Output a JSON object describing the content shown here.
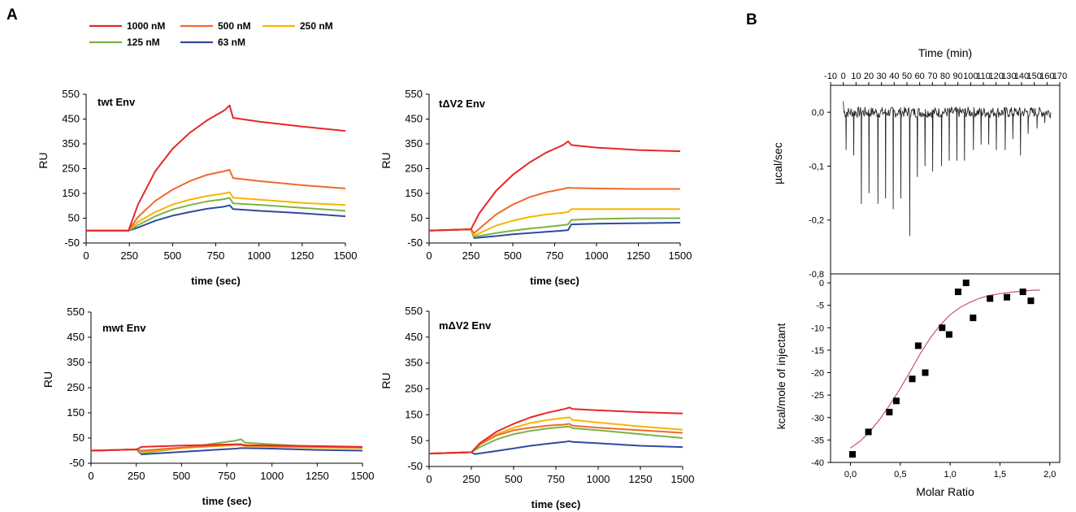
{
  "panel_labels": {
    "a": "A",
    "b": "B"
  },
  "legend": [
    {
      "name": "1000 nM",
      "color": "#e8262a"
    },
    {
      "name": "500 nM",
      "color": "#ef6a2c"
    },
    {
      "name": "250 nM",
      "color": "#f7b500"
    },
    {
      "name": "125 nM",
      "color": "#7cb342"
    },
    {
      "name": "63 nM",
      "color": "#2f4aa0"
    }
  ],
  "chart_data": [
    {
      "id": "twt",
      "type": "line",
      "title": "twt Env",
      "xlabel": "time (sec)",
      "ylabel": "RU",
      "xlim": [
        0,
        1500
      ],
      "ylim": [
        -50,
        550
      ],
      "xticks": [
        0,
        250,
        500,
        750,
        1000,
        1250,
        1500
      ],
      "yticks": [
        -50,
        50,
        150,
        250,
        350,
        450,
        550
      ],
      "series": [
        {
          "name": "1000 nM",
          "x": [
            0,
            245,
            300,
            400,
            500,
            600,
            700,
            800,
            830,
            850,
            1000,
            1250,
            1500
          ],
          "y": [
            0,
            0,
            105,
            240,
            330,
            395,
            445,
            485,
            505,
            455,
            440,
            420,
            402
          ]
        },
        {
          "name": "500 nM",
          "x": [
            0,
            245,
            300,
            400,
            500,
            600,
            700,
            800,
            830,
            850,
            1000,
            1250,
            1500
          ],
          "y": [
            0,
            0,
            55,
            120,
            165,
            200,
            225,
            240,
            245,
            212,
            200,
            183,
            170
          ]
        },
        {
          "name": "250 nM",
          "x": [
            0,
            245,
            300,
            400,
            500,
            600,
            700,
            800,
            830,
            850,
            1000,
            1250,
            1500
          ],
          "y": [
            0,
            0,
            35,
            75,
            105,
            125,
            140,
            150,
            155,
            133,
            125,
            112,
            103
          ]
        },
        {
          "name": "125 nM",
          "x": [
            0,
            245,
            300,
            400,
            500,
            600,
            700,
            800,
            830,
            850,
            1000,
            1250,
            1500
          ],
          "y": [
            0,
            0,
            22,
            58,
            85,
            103,
            118,
            127,
            132,
            110,
            104,
            92,
            80
          ]
        },
        {
          "name": "63 nM",
          "x": [
            0,
            245,
            300,
            400,
            500,
            600,
            700,
            800,
            830,
            850,
            1000,
            1250,
            1500
          ],
          "y": [
            0,
            0,
            12,
            40,
            60,
            75,
            88,
            97,
            102,
            87,
            80,
            70,
            58
          ]
        }
      ]
    },
    {
      "id": "tdv2",
      "type": "line",
      "title": "tΔV2 Env",
      "xlabel": "time (sec)",
      "ylabel": "RU",
      "xlim": [
        0,
        1500
      ],
      "ylim": [
        -50,
        550
      ],
      "xticks": [
        0,
        250,
        500,
        750,
        1000,
        1250,
        1500
      ],
      "yticks": [
        -50,
        50,
        150,
        250,
        350,
        450,
        550
      ],
      "series": [
        {
          "name": "1000 nM",
          "x": [
            0,
            230,
            250,
            300,
            400,
            500,
            600,
            700,
            800,
            830,
            850,
            1000,
            1250,
            1500
          ],
          "y": [
            0,
            5,
            5,
            70,
            160,
            225,
            275,
            315,
            345,
            360,
            345,
            335,
            325,
            320
          ]
        },
        {
          "name": "500 nM",
          "x": [
            0,
            230,
            250,
            270,
            400,
            500,
            600,
            700,
            800,
            830,
            850,
            1000,
            1250,
            1500
          ],
          "y": [
            0,
            5,
            5,
            -10,
            65,
            105,
            135,
            155,
            168,
            173,
            172,
            170,
            168,
            168
          ]
        },
        {
          "name": "250 nM",
          "x": [
            0,
            230,
            250,
            270,
            400,
            500,
            600,
            700,
            800,
            830,
            850,
            1000,
            1250,
            1500
          ],
          "y": [
            0,
            5,
            5,
            -20,
            20,
            40,
            55,
            65,
            72,
            75,
            87,
            87,
            87,
            87
          ]
        },
        {
          "name": "125 nM",
          "x": [
            0,
            230,
            250,
            270,
            400,
            500,
            600,
            700,
            800,
            830,
            850,
            1000,
            1250,
            1500
          ],
          "y": [
            0,
            5,
            5,
            -25,
            -10,
            0,
            8,
            15,
            22,
            25,
            43,
            47,
            50,
            50
          ]
        },
        {
          "name": "63 nM",
          "x": [
            0,
            230,
            250,
            270,
            400,
            500,
            600,
            700,
            800,
            830,
            850,
            1000,
            1250,
            1500
          ],
          "y": [
            0,
            5,
            5,
            -30,
            -22,
            -15,
            -10,
            -5,
            0,
            2,
            25,
            28,
            30,
            32
          ]
        }
      ]
    },
    {
      "id": "mwt",
      "type": "line",
      "title": "mwt Env",
      "xlabel": "time (sec)",
      "ylabel": "RU",
      "xlim": [
        0,
        1500
      ],
      "ylim": [
        -50,
        550
      ],
      "xticks": [
        0,
        250,
        500,
        750,
        1000,
        1250,
        1500
      ],
      "yticks": [
        -50,
        50,
        150,
        250,
        350,
        450,
        550
      ],
      "series": [
        {
          "name": "1000 nM",
          "x": [
            0,
            250,
            280,
            500,
            800,
            830,
            850,
            1000,
            1250,
            1500
          ],
          "y": [
            0,
            5,
            15,
            20,
            25,
            25,
            22,
            20,
            18,
            15
          ]
        },
        {
          "name": "500 nM",
          "x": [
            0,
            250,
            280,
            500,
            800,
            830,
            850,
            1000,
            1250,
            1500
          ],
          "y": [
            0,
            5,
            0,
            12,
            25,
            25,
            20,
            18,
            15,
            12
          ]
        },
        {
          "name": "250 nM",
          "x": [
            0,
            250,
            280,
            500,
            800,
            830,
            850,
            1000,
            1250,
            1500
          ],
          "y": [
            0,
            5,
            -5,
            10,
            22,
            22,
            18,
            15,
            12,
            10
          ]
        },
        {
          "name": "125 nM",
          "x": [
            0,
            250,
            280,
            500,
            800,
            830,
            850,
            1000,
            1250,
            1500
          ],
          "y": [
            0,
            5,
            -10,
            10,
            40,
            45,
            32,
            25,
            15,
            12
          ]
        },
        {
          "name": "63 nM",
          "x": [
            0,
            250,
            280,
            500,
            800,
            830,
            850,
            1000,
            1250,
            1500
          ],
          "y": [
            0,
            5,
            -15,
            -5,
            8,
            10,
            10,
            8,
            3,
            0
          ]
        }
      ]
    },
    {
      "id": "mdv2",
      "type": "line",
      "title": "mΔV2 Env",
      "xlabel": "time (sec)",
      "ylabel": "RU",
      "xlim": [
        0,
        1500
      ],
      "ylim": [
        -50,
        550
      ],
      "xticks": [
        0,
        250,
        500,
        750,
        1000,
        1250,
        1500
      ],
      "yticks": [
        -50,
        50,
        150,
        250,
        350,
        450,
        550
      ],
      "series": [
        {
          "name": "1000 nM",
          "x": [
            0,
            240,
            250,
            300,
            400,
            500,
            600,
            700,
            800,
            830,
            850,
            1000,
            1250,
            1500
          ],
          "y": [
            0,
            5,
            5,
            40,
            85,
            115,
            140,
            158,
            172,
            178,
            172,
            167,
            160,
            155
          ]
        },
        {
          "name": "500 nM",
          "x": [
            0,
            240,
            250,
            300,
            400,
            500,
            600,
            700,
            800,
            830,
            850,
            1000,
            1250,
            1500
          ],
          "y": [
            0,
            5,
            5,
            35,
            70,
            90,
            100,
            108,
            112,
            115,
            108,
            100,
            90,
            80
          ]
        },
        {
          "name": "250 nM",
          "x": [
            0,
            240,
            250,
            300,
            400,
            500,
            600,
            700,
            800,
            830,
            850,
            1000,
            1250,
            1500
          ],
          "y": [
            0,
            5,
            5,
            35,
            75,
            100,
            118,
            130,
            138,
            140,
            130,
            120,
            105,
            92
          ]
        },
        {
          "name": "125 nM",
          "x": [
            0,
            240,
            250,
            300,
            400,
            500,
            600,
            700,
            800,
            830,
            850,
            1000,
            1250,
            1500
          ],
          "y": [
            0,
            5,
            5,
            25,
            55,
            75,
            88,
            97,
            103,
            105,
            98,
            90,
            75,
            60
          ]
        },
        {
          "name": "63 nM",
          "x": [
            0,
            240,
            250,
            270,
            400,
            500,
            600,
            700,
            800,
            830,
            850,
            1000,
            1250,
            1500
          ],
          "y": [
            0,
            5,
            5,
            -2,
            10,
            20,
            30,
            38,
            45,
            48,
            45,
            40,
            30,
            25
          ]
        }
      ]
    },
    {
      "id": "itc_raw",
      "type": "line",
      "xlabel": "Time (min)",
      "ylabel": "µcal/sec",
      "ylim": [
        -0.3,
        0.05
      ],
      "yticks_labels": [
        "0,0",
        "-0,1",
        "-0,2"
      ],
      "yticks": [
        0,
        -0.1,
        -0.2
      ],
      "xtick_labels": [
        "-10",
        "0",
        "10",
        "20",
        "30",
        "40",
        "50",
        "60",
        "70",
        "80",
        "90",
        "100",
        "110",
        "120",
        "130",
        "140",
        "150",
        "160",
        "170"
      ],
      "xlim": [
        -10,
        170
      ],
      "injection_times": [
        2,
        8,
        14,
        20,
        27,
        33,
        39,
        45,
        52,
        58,
        64,
        70,
        77,
        83,
        89,
        95,
        102,
        108,
        114,
        120,
        127,
        133,
        139,
        145,
        152,
        158
      ],
      "injection_peaks": [
        -0.07,
        -0.08,
        -0.17,
        -0.15,
        -0.17,
        -0.16,
        -0.18,
        -0.16,
        -0.23,
        -0.12,
        -0.1,
        -0.11,
        -0.1,
        -0.09,
        -0.09,
        -0.09,
        -0.07,
        -0.06,
        -0.06,
        -0.07,
        -0.07,
        -0.05,
        -0.08,
        -0.04,
        -0.03,
        -0.02
      ]
    },
    {
      "id": "itc_fit",
      "type": "scatter",
      "xlabel": "Molar Ratio",
      "ylabel": "kcal/mole of injectant",
      "xlim": [
        -0.2,
        2.1
      ],
      "ylim": [
        -40,
        2
      ],
      "top_tick_label": "-0,8",
      "xtick_labels": [
        "0,0",
        "0,5",
        "1,0",
        "1,5",
        "2,0"
      ],
      "xticks": [
        0,
        0.5,
        1.0,
        1.5,
        2.0
      ],
      "yticks": [
        0,
        -5,
        -10,
        -15,
        -20,
        -25,
        -30,
        -35,
        -40
      ],
      "points": {
        "x": [
          0.02,
          0.18,
          0.39,
          0.46,
          0.62,
          0.68,
          0.75,
          0.92,
          0.99,
          1.08,
          1.16,
          1.23,
          1.4,
          1.57,
          1.73,
          1.81
        ],
        "y": [
          -38.2,
          -33.2,
          -28.8,
          -26.3,
          -21.4,
          -14.0,
          -20.0,
          -10.0,
          -11.5,
          -2.0,
          0.0,
          -7.8,
          -3.5,
          -3.2,
          -2.0,
          -4.0
        ]
      },
      "fit_curve": {
        "x": [
          0.0,
          0.1,
          0.2,
          0.3,
          0.4,
          0.5,
          0.6,
          0.7,
          0.8,
          0.9,
          1.0,
          1.1,
          1.2,
          1.3,
          1.4,
          1.5,
          1.6,
          1.7,
          1.8,
          1.9
        ],
        "y": [
          -36.8,
          -35.2,
          -33.0,
          -30.2,
          -27.0,
          -23.5,
          -19.7,
          -15.8,
          -12.3,
          -9.4,
          -7.1,
          -5.5,
          -4.3,
          -3.4,
          -2.8,
          -2.4,
          -2.1,
          -1.9,
          -1.7,
          -1.6
        ]
      },
      "fit_color": "#c8566a"
    }
  ]
}
